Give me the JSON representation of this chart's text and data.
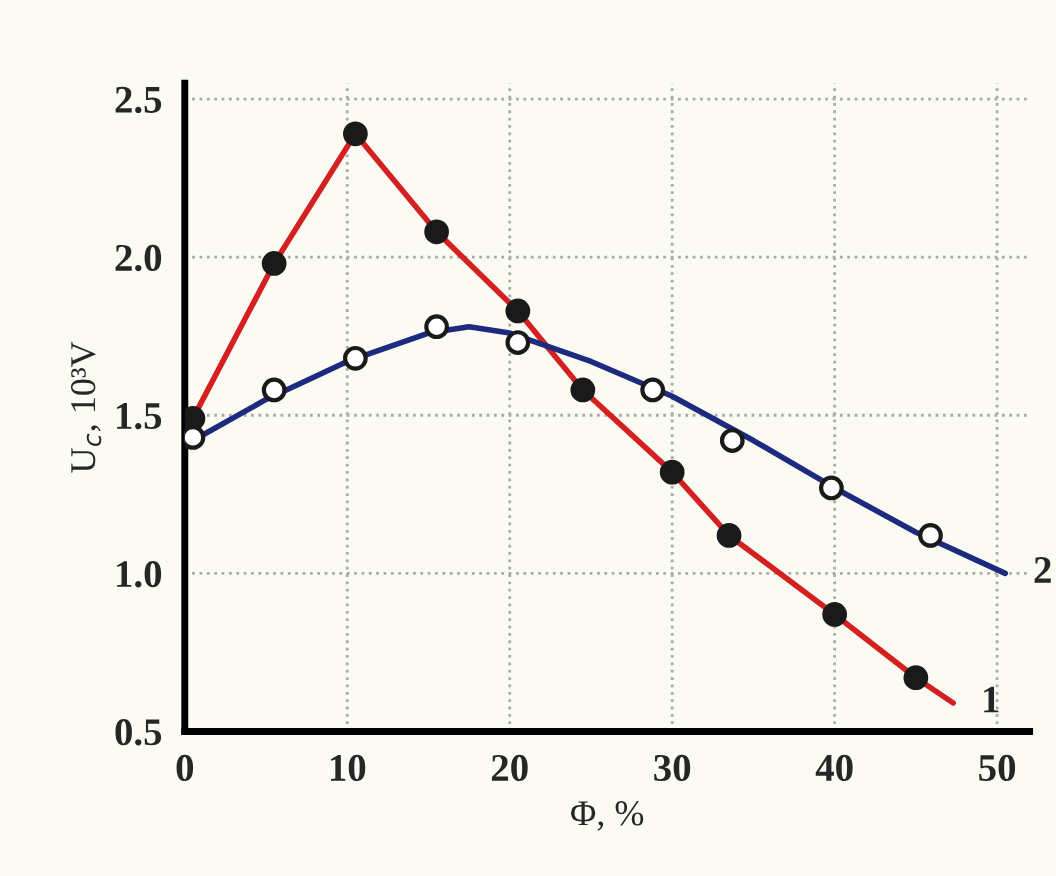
{
  "chart_data": {
    "type": "line",
    "xlabel": "Φ, %",
    "ylabel": "U$_{c}$, 10³V",
    "xlim": [
      0,
      52
    ],
    "ylim": [
      0.5,
      2.55
    ],
    "xticks": [
      0,
      10,
      20,
      30,
      40,
      50
    ],
    "yticks": [
      0.5,
      {
        "value": 1,
        "label": "1.0"
      },
      1.5,
      {
        "value": 2,
        "label": "2.0"
      },
      2.5
    ],
    "grid": true,
    "legend": false,
    "series": [
      {
        "type": "scatter",
        "color": "#1a1a1a",
        "marker": "circle",
        "x": [
          0.5,
          5.5,
          10.5,
          15.5,
          20.5,
          24.5,
          30,
          33.5,
          40,
          45
        ],
        "values": [
          1.49,
          1.98,
          2.39,
          2.08,
          1.83,
          1.58,
          1.32,
          1.12,
          0.87,
          0.67
        ]
      },
      {
        "name": "1",
        "color": "#d42020",
        "x": [
          0.5,
          5.5,
          10.5,
          15.5,
          20.5,
          24.5,
          30,
          33.5,
          40,
          45,
          47.3
        ],
        "values": [
          1.49,
          1.98,
          2.39,
          2.08,
          1.83,
          1.58,
          1.32,
          1.12,
          0.87,
          0.67,
          0.59
        ]
      },
      {
        "type": "scatter",
        "color": "#ffffff",
        "marker": "circle",
        "x": [
          0.5,
          5.5,
          10.5,
          15.5,
          20.5,
          28.8,
          33.7,
          39.8,
          45.9
        ],
        "values": [
          1.43,
          1.58,
          1.68,
          1.78,
          1.73,
          1.58,
          1.42,
          1.27,
          1.12
        ]
      },
      {
        "name": "2",
        "color": "#1c2a80",
        "x": [
          0.5,
          5,
          10,
          15,
          17.5,
          20,
          25,
          30,
          35,
          40,
          45,
          50.5
        ],
        "values": [
          1.42,
          1.55,
          1.67,
          1.76,
          1.78,
          1.76,
          1.67,
          1.56,
          1.42,
          1.27,
          1.13,
          1.0
        ]
      }
    ]
  }
}
